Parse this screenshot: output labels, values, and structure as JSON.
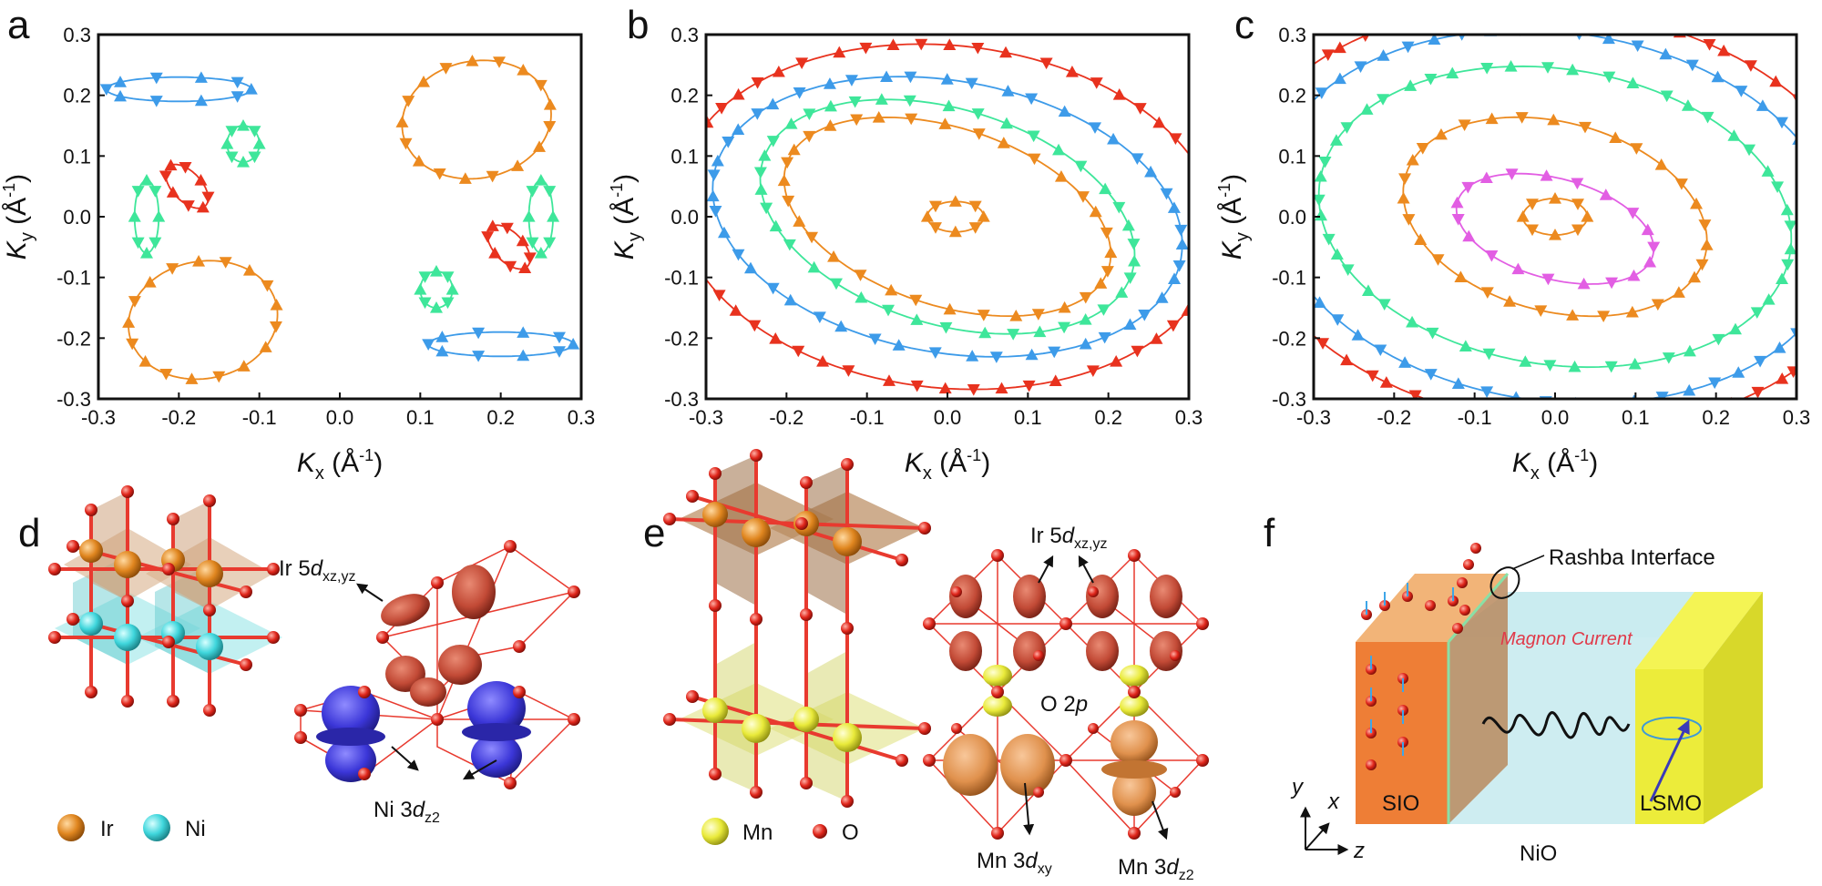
{
  "figure": {
    "panel_labels": [
      "a",
      "b",
      "c",
      "d",
      "e",
      "f"
    ],
    "axis": {
      "xlabel_main": "K",
      "xlabel_sub": "x",
      "ylabel_main": "K",
      "ylabel_sub": "y",
      "unit_open": " (Å",
      "unit_sup": "-1",
      "unit_close": ")",
      "xlim": [
        -0.3,
        0.3
      ],
      "ylim": [
        -0.3,
        0.3
      ],
      "xticks": [
        "-0.3",
        "-0.2",
        "-0.1",
        "0.0",
        "0.1",
        "0.2",
        "0.3"
      ],
      "yticks": [
        "0.3",
        "0.2",
        "0.1",
        "0.0",
        "-0.1",
        "-0.2",
        "-0.3"
      ]
    },
    "colors": {
      "red": "#e8321e",
      "blue": "#3d9be9",
      "green": "#3ee69a",
      "orange": "#ec8a1f",
      "magenta": "#e25ee3",
      "ir": "#e0861f",
      "ni": "#3fd6dc",
      "mn": "#e9ea3a",
      "o": "#e0261b",
      "bond": "#e83a2f",
      "lobe_red": "#c24a36",
      "lobe_blue": "#3b36d8",
      "lobe_orange": "#e0914d"
    },
    "panel_d": {
      "legend_ir": "Ir",
      "legend_ni": "Ni",
      "ir_orbital_main": "Ir 5",
      "ir_orbital_d": "d",
      "ir_orbital_sub": "xz,yz",
      "ni_orbital_main": "Ni 3",
      "ni_orbital_d": "d",
      "ni_orbital_sub": "z2"
    },
    "panel_e": {
      "legend_mn": "Mn",
      "legend_o": "O",
      "ir_orbital_main": "Ir 5",
      "ir_orbital_d": "d",
      "ir_orbital_sub": "xz,yz",
      "o_orbital": "O 2",
      "o_orbital_p": "p",
      "mn_orbital1_main": "Mn 3",
      "mn_orbital1_d": "d",
      "mn_orbital1_sub": "xy",
      "mn_orbital2_main": "Mn 3",
      "mn_orbital2_d": "d",
      "mn_orbital2_sub": "z2"
    },
    "panel_f": {
      "interface_label": "Rashba Interface",
      "current_label": "Magnon Current",
      "layer_sio": "SIO",
      "layer_nio": "NiO",
      "layer_lsmo": "LSMO",
      "axis_y": "y",
      "axis_x": "x",
      "axis_z": "z"
    }
  },
  "chart_data": [
    {
      "type": "scatter",
      "panel": "a",
      "xlim": [
        -0.3,
        0.3
      ],
      "ylim": [
        -0.3,
        0.3
      ],
      "series": [
        {
          "color": "orange",
          "loops": [
            {
              "cx": 0.17,
              "cy": 0.16,
              "rx": 0.09,
              "ry": 0.1,
              "rot": -30
            },
            {
              "cx": -0.17,
              "cy": -0.17,
              "rx": 0.09,
              "ry": 0.1,
              "rot": -30
            }
          ]
        },
        {
          "color": "blue",
          "loops": [
            {
              "cx": -0.2,
              "cy": 0.21,
              "rx": 0.09,
              "ry": 0.02,
              "rot": 0
            },
            {
              "cx": 0.2,
              "cy": -0.21,
              "rx": 0.09,
              "ry": 0.02,
              "rot": 0
            }
          ]
        },
        {
          "color": "green",
          "loops": [
            {
              "cx": -0.24,
              "cy": 0.0,
              "rx": 0.015,
              "ry": 0.06,
              "rot": 0
            },
            {
              "cx": 0.25,
              "cy": 0.0,
              "rx": 0.015,
              "ry": 0.06,
              "rot": 0
            },
            {
              "cx": -0.12,
              "cy": 0.12,
              "rx": 0.02,
              "ry": 0.03,
              "rot": 0
            },
            {
              "cx": 0.12,
              "cy": -0.12,
              "rx": 0.02,
              "ry": 0.03,
              "rot": 0
            }
          ]
        },
        {
          "color": "red",
          "loops": [
            {
              "cx": -0.19,
              "cy": 0.05,
              "rx": 0.02,
              "ry": 0.04,
              "rot": 30
            },
            {
              "cx": 0.21,
              "cy": -0.05,
              "rx": 0.02,
              "ry": 0.04,
              "rot": 30
            }
          ]
        }
      ]
    },
    {
      "type": "scatter",
      "panel": "b",
      "xlim": [
        -0.3,
        0.3
      ],
      "ylim": [
        -0.3,
        0.3
      ],
      "series": [
        {
          "color": "orange",
          "loops": [
            {
              "cx": 0.0,
              "cy": 0.0,
              "rx": 0.22,
              "ry": 0.14,
              "rot": -30
            },
            {
              "cx": 0.01,
              "cy": 0.0,
              "rx": 0.035,
              "ry": 0.025,
              "rot": 0
            }
          ]
        },
        {
          "color": "green",
          "loops": [
            {
              "cx": 0.0,
              "cy": 0.0,
              "rx": 0.25,
              "ry": 0.17,
              "rot": -30
            }
          ]
        },
        {
          "color": "blue",
          "loops": [
            {
              "cx": 0.0,
              "cy": 0.0,
              "rx": 0.3,
              "ry": 0.22,
              "rot": -20
            }
          ]
        },
        {
          "color": "red",
          "loops": [
            {
              "cx": 0.0,
              "cy": 0.0,
              "rx": 0.34,
              "ry": 0.28,
              "rot": -15
            }
          ]
        }
      ]
    },
    {
      "type": "scatter",
      "panel": "c",
      "xlim": [
        -0.3,
        0.3
      ],
      "ylim": [
        -0.3,
        0.3
      ],
      "series": [
        {
          "color": "orange",
          "loops": [
            {
              "cx": 0.0,
              "cy": 0.0,
              "rx": 0.2,
              "ry": 0.15,
              "rot": -30
            },
            {
              "cx": 0.0,
              "cy": 0.0,
              "rx": 0.04,
              "ry": 0.03,
              "rot": 0
            }
          ]
        },
        {
          "color": "magenta",
          "loops": [
            {
              "cx": 0.0,
              "cy": -0.02,
              "rx": 0.13,
              "ry": 0.08,
              "rot": -25
            }
          ]
        },
        {
          "color": "green",
          "loops": [
            {
              "cx": 0.0,
              "cy": 0.0,
              "rx": 0.3,
              "ry": 0.24,
              "rot": -20
            }
          ]
        },
        {
          "color": "blue",
          "loops": [
            {
              "cx": 0.0,
              "cy": 0.0,
              "rx": 0.36,
              "ry": 0.3,
              "rot": -20
            }
          ]
        },
        {
          "color": "red",
          "loops": [
            {
              "cx": 0.0,
              "cy": 0.0,
              "rx": 0.4,
              "ry": 0.34,
              "rot": -20
            }
          ]
        }
      ]
    }
  ]
}
